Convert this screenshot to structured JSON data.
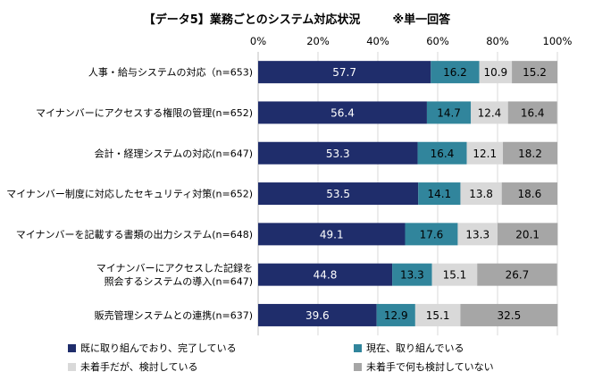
{
  "chart_data": {
    "type": "bar",
    "orientation": "horizontal",
    "stacked": true,
    "title": "【データ5】業務ごとのシステム対応状況",
    "subtitle": "※単一回答",
    "xlim": [
      0,
      100
    ],
    "x_ticks": [
      "0%",
      "20%",
      "40%",
      "60%",
      "80%",
      "100%"
    ],
    "grid": true,
    "legend_position": "bottom",
    "categories": [
      [
        "人事・給与システムの対応（n=653)"
      ],
      [
        "マイナンバーにアクセスする権限の管理(n=652)"
      ],
      [
        "会計・経理システムの対応(n=647)"
      ],
      [
        "マイナンバー制度に対応したセキュリティ対策(n=652)"
      ],
      [
        "マイナンバーを記載する書類の出力システム(n=648)"
      ],
      [
        "マイナンバーにアクセスした記録を",
        "照会するシステムの導入(n=647)"
      ],
      [
        "販売管理システムとの連携(n=637)"
      ]
    ],
    "series": [
      {
        "name": "既に取り組んでおり、完了している",
        "color": "#1f2d6b",
        "label_color": "#ffffff",
        "values": [
          57.7,
          56.4,
          53.3,
          53.5,
          49.1,
          44.8,
          39.6
        ]
      },
      {
        "name": "現在、取り組んでいる",
        "color": "#31859c",
        "label_color": "#000000",
        "values": [
          16.2,
          14.7,
          16.4,
          14.1,
          17.6,
          13.3,
          12.9
        ]
      },
      {
        "name": "未着手だが、検討している",
        "color": "#d9d9d9",
        "label_color": "#000000",
        "values": [
          10.9,
          12.4,
          12.1,
          13.8,
          13.3,
          15.1,
          15.1
        ]
      },
      {
        "name": "未着手で何も検討していない",
        "color": "#a6a6a6",
        "label_color": "#000000",
        "values": [
          15.2,
          16.4,
          18.2,
          18.6,
          20.1,
          26.7,
          32.5
        ]
      }
    ]
  }
}
